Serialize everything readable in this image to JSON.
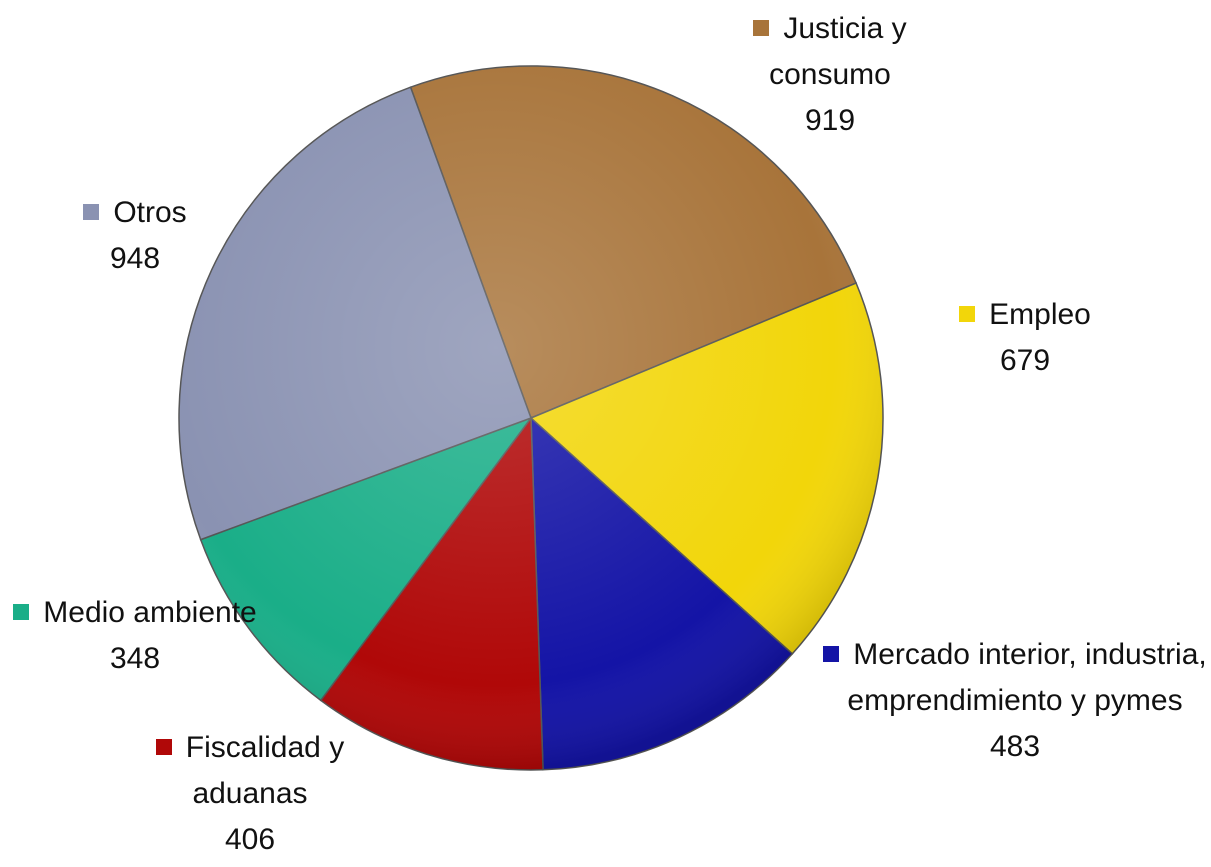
{
  "chart_data": {
    "type": "pie",
    "categories": [
      "Justicia y consumo",
      "Empleo",
      "Mercado interior, industria, emprendimiento y pymes",
      "Fiscalidad y aduanas",
      "Medio ambiente",
      "Otros"
    ],
    "values": [
      919,
      679,
      483,
      406,
      348,
      948
    ],
    "colors": [
      "#a8743a",
      "#f2d60a",
      "#1414a6",
      "#b00808",
      "#1aae88",
      "#8a92b2"
    ]
  }
}
